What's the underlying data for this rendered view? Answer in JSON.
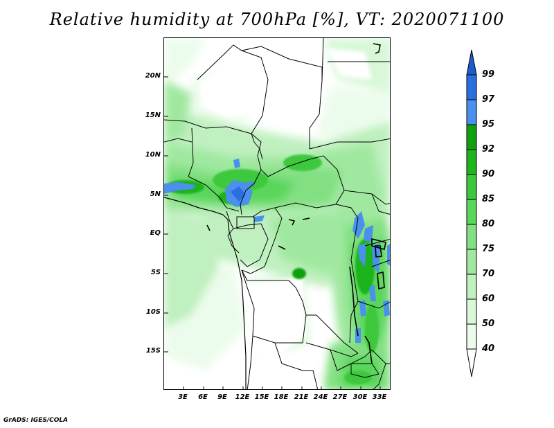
{
  "title": "Relative humidity at 700hPa [%], VT: 2020071100",
  "credit": "GrADS: IGES/COLA",
  "map": {
    "lat_labels": [
      "20N",
      "15N",
      "10N",
      "5N",
      "EQ",
      "5S",
      "10S",
      "15S"
    ],
    "lon_labels": [
      "3E",
      "6E",
      "9E",
      "12E",
      "15E",
      "18E",
      "21E",
      "24E",
      "27E",
      "30E",
      "33E"
    ]
  },
  "colorbar": {
    "labels": [
      "99",
      "97",
      "95",
      "92",
      "90",
      "85",
      "80",
      "75",
      "70",
      "60",
      "50",
      "40"
    ],
    "colors": {
      "above_99": "#1e5ccc",
      "97_99": "#2a6fe0",
      "95_97": "#4a90ec",
      "92_95": "#10a010",
      "90_92": "#1eb41e",
      "85_90": "#3cc83c",
      "80_85": "#5ad65a",
      "75_80": "#82e082",
      "70_75": "#a0e8a0",
      "60_70": "#c0f0c0",
      "50_60": "#d8f8d8",
      "40_50": "#ecfcec",
      "below_40": "#ffffff"
    }
  }
}
